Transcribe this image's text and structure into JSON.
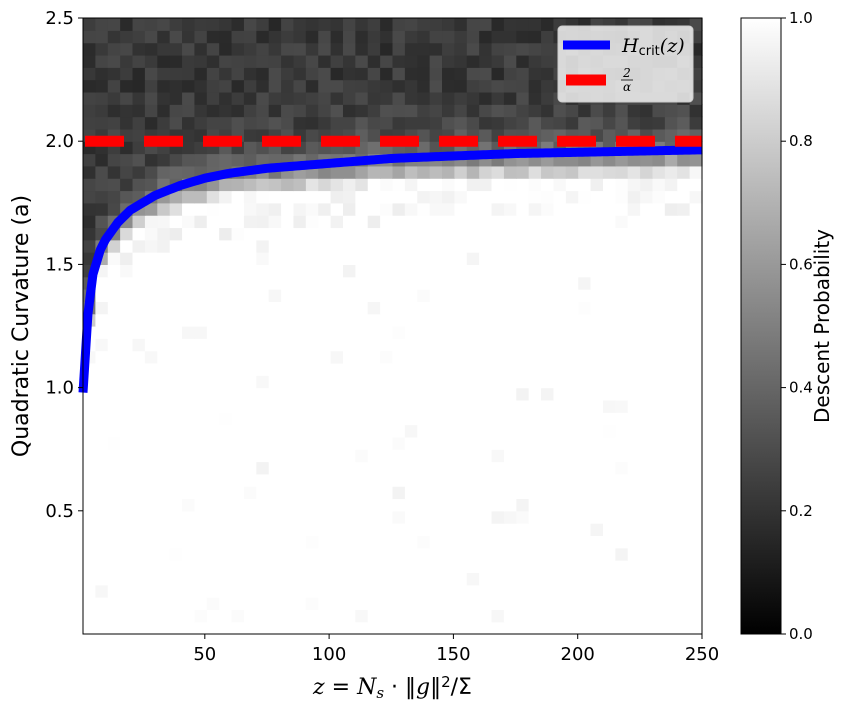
{
  "chart_data": {
    "type": "heatmap",
    "title": "",
    "xlabel": "z = N_s · ‖g‖²/Σ",
    "ylabel": "Quadratic Curvature (a)",
    "xlim": [
      1,
      250
    ],
    "ylim": [
      0,
      2.5
    ],
    "xticks": [
      50,
      100,
      150,
      200,
      250
    ],
    "xtick_labels": [
      "50",
      "100",
      "150",
      "200",
      "250"
    ],
    "yticks": [
      0.5,
      1.0,
      1.5,
      2.0,
      2.5
    ],
    "ytick_labels": [
      "0.5",
      "1.0",
      "1.5",
      "2.0",
      "2.5"
    ],
    "heatmap": {
      "colormap": "gray",
      "value_label": "Descent Probability",
      "vmin": 0.0,
      "vmax": 1.0,
      "colorbar_ticks": [
        0.0,
        0.2,
        0.4,
        0.6,
        0.8,
        1.0
      ],
      "colorbar_tick_labels": [
        "0.0",
        "0.2",
        "0.4",
        "0.6",
        "0.8",
        "1.0"
      ],
      "x_bins": 50,
      "y_bins": 50,
      "description": "Probability ≈1 (white) below the H_crit(z) curve, falling to ≈0.2 (dark gray) above 2/α"
    },
    "series": [
      {
        "name": "H_crit(z)",
        "style": "solid",
        "color": "#0000ff",
        "x": [
          1,
          3,
          5,
          8,
          10,
          15,
          20,
          25,
          30,
          40,
          50,
          60,
          75,
          100,
          125,
          150,
          175,
          200,
          225,
          250
        ],
        "y": [
          0.98,
          1.3,
          1.46,
          1.56,
          1.6,
          1.67,
          1.72,
          1.75,
          1.78,
          1.82,
          1.85,
          1.87,
          1.89,
          1.91,
          1.93,
          1.94,
          1.95,
          1.955,
          1.96,
          1.965
        ]
      },
      {
        "name": "2/α",
        "style": "dashed",
        "color": "#ff0000",
        "x": [
          1,
          250
        ],
        "y": [
          2.0,
          2.0
        ]
      }
    ],
    "legend": {
      "placement": "top-right",
      "entries": [
        {
          "label": "H",
          "sub": "crit",
          "suffix": "(z)"
        },
        {
          "label": "2",
          "denominator": "α"
        }
      ]
    }
  }
}
